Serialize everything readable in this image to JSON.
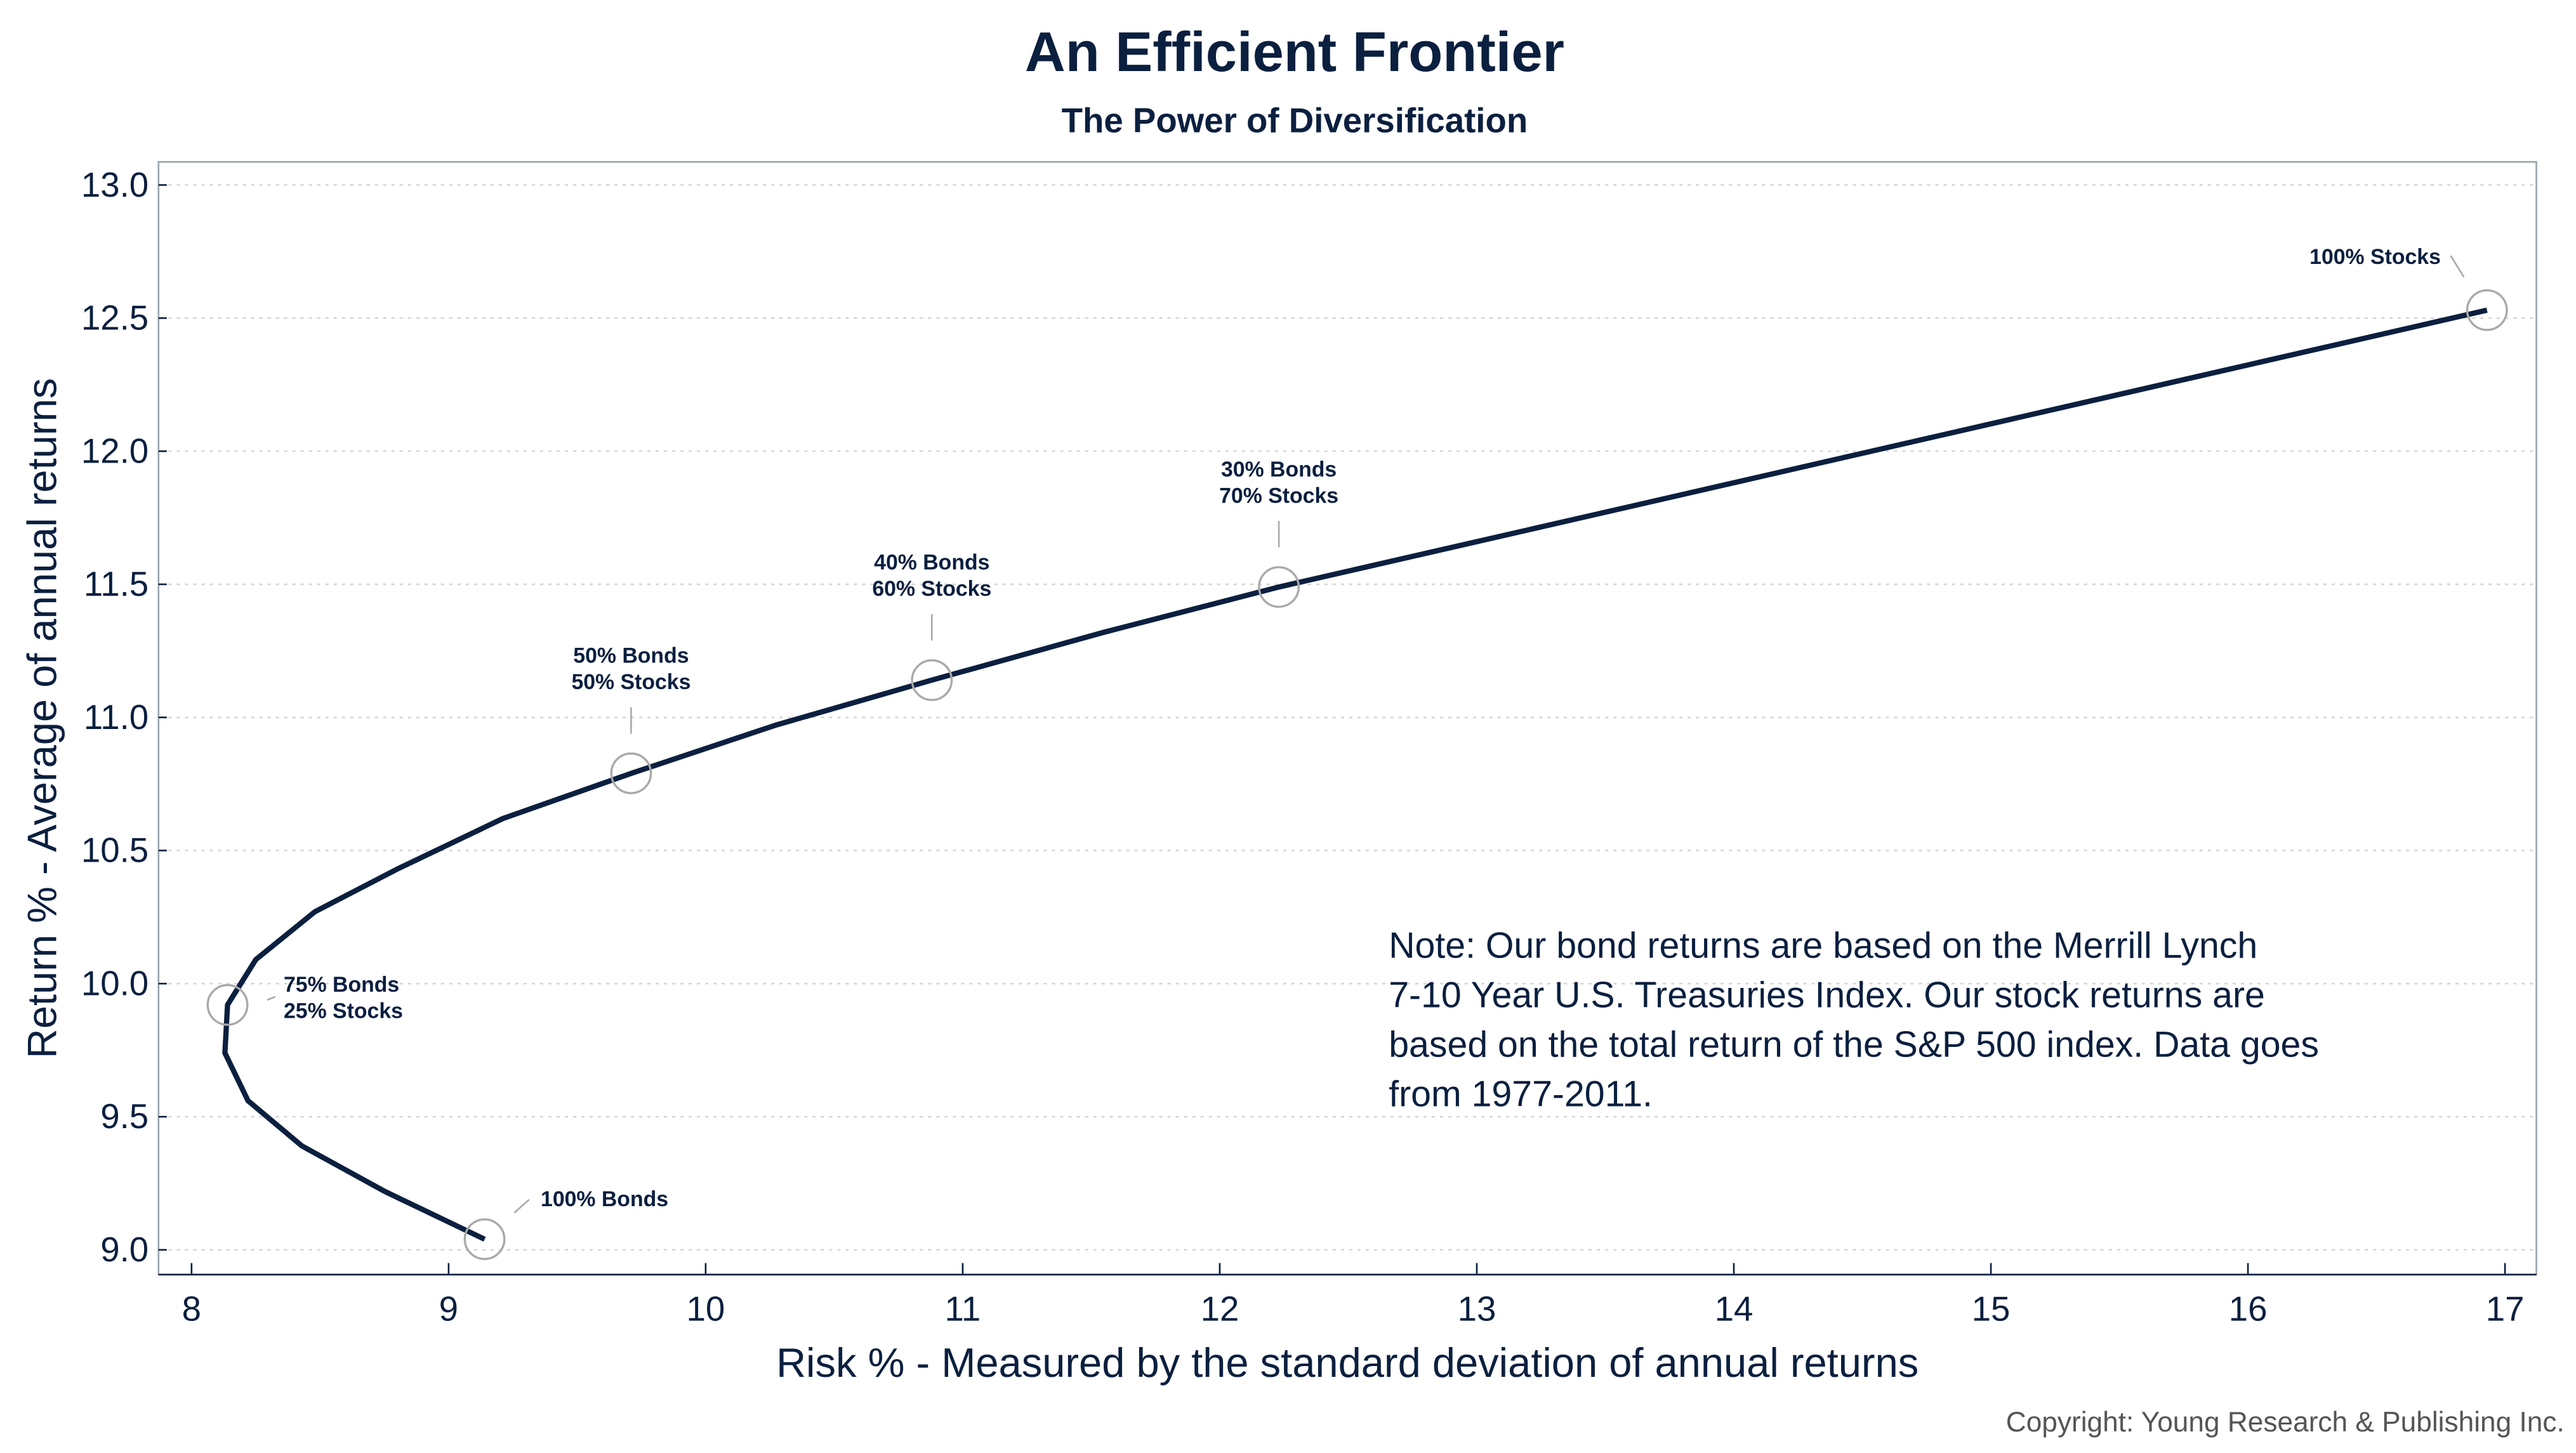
{
  "chart_data": {
    "type": "line",
    "title": "An Efficient Frontier",
    "subtitle": "The Power of Diversification",
    "xlabel": "Risk % - Measured by the standard deviation of annual returns",
    "ylabel": "Return % - Average of annual returns",
    "xlim": [
      8,
      17
    ],
    "ylim": [
      9.0,
      13.0
    ],
    "xticks": [
      "8",
      "9",
      "10",
      "11",
      "12",
      "13",
      "14",
      "15",
      "16",
      "17"
    ],
    "yticks": [
      "9.0",
      "9.5",
      "10.0",
      "10.5",
      "11.0",
      "11.5",
      "12.0",
      "12.5",
      "13.0"
    ],
    "grid": "horizontal dotted",
    "legend": "none",
    "line_color": "#0b1f3f",
    "series": [
      {
        "x": [
          9.14,
          8.75,
          8.43,
          8.22,
          8.13,
          8.14,
          8.25,
          8.48,
          8.8,
          9.21,
          9.71,
          10.27,
          10.88,
          11.55,
          12.23,
          16.93
        ],
        "y": [
          9.04,
          9.22,
          9.39,
          9.56,
          9.74,
          9.92,
          10.09,
          10.27,
          10.43,
          10.62,
          10.79,
          10.97,
          11.14,
          11.32,
          11.49,
          12.53
        ]
      }
    ],
    "annotations": [
      {
        "x": 9.14,
        "y": 9.04,
        "lines": [
          "100% Bonds"
        ]
      },
      {
        "x": 8.14,
        "y": 9.92,
        "lines": [
          "75% Bonds",
          "25% Stocks"
        ]
      },
      {
        "x": 9.71,
        "y": 10.79,
        "lines": [
          "50% Bonds",
          "50% Stocks"
        ]
      },
      {
        "x": 10.88,
        "y": 11.14,
        "lines": [
          "40% Bonds",
          "60% Stocks"
        ]
      },
      {
        "x": 12.23,
        "y": 11.49,
        "lines": [
          "30% Bonds",
          "70% Stocks"
        ]
      },
      {
        "x": 16.93,
        "y": 12.53,
        "lines": [
          "100% Stocks"
        ]
      }
    ],
    "note": [
      "Note:  Our bond returns are based on the Merrill Lynch",
      "7-10 Year U.S. Treasuries Index.  Our stock returns are",
      "based on the total return of the S&P 500 index.  Data goes",
      "from 1977-2011."
    ],
    "copyright": "Copyright: Young Research & Publishing Inc."
  }
}
